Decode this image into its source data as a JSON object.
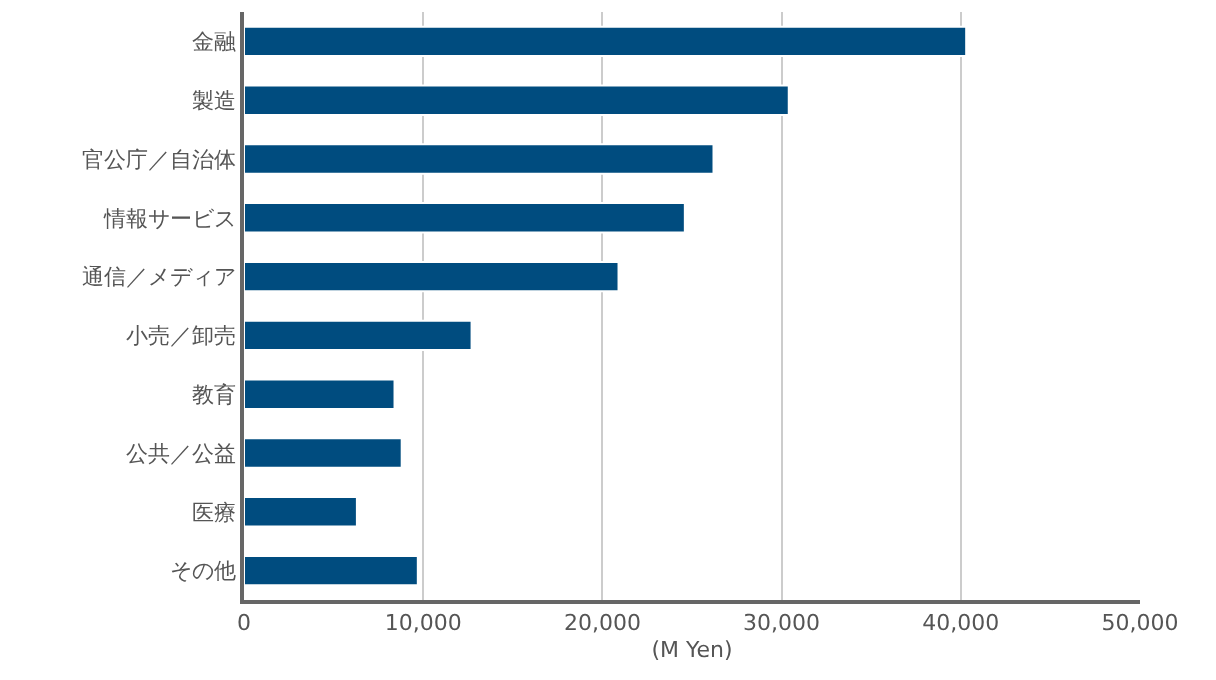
{
  "chart_data": {
    "type": "bar",
    "orientation": "horizontal",
    "xlabel": "(M Yen)",
    "categories": [
      "金融",
      "製造",
      "官公庁／自治体",
      "情報サービス",
      "通信／メディア",
      "小売／卸売",
      "教育",
      "公共／公益",
      "医療",
      "その他"
    ],
    "values": [
      40300,
      30400,
      26200,
      24600,
      20900,
      12700,
      8400,
      8800,
      6300,
      9700
    ],
    "color": "#004c7f",
    "xlim": [
      0,
      50000
    ],
    "xticks": [
      {
        "value": 0,
        "label": "0"
      },
      {
        "value": 10000,
        "label": "10,000"
      },
      {
        "value": 20000,
        "label": "20,000"
      },
      {
        "value": 30000,
        "label": "30,000"
      },
      {
        "value": 40000,
        "label": "40,000"
      },
      {
        "value": 50000,
        "label": "50,000"
      }
    ],
    "grid": "x"
  }
}
